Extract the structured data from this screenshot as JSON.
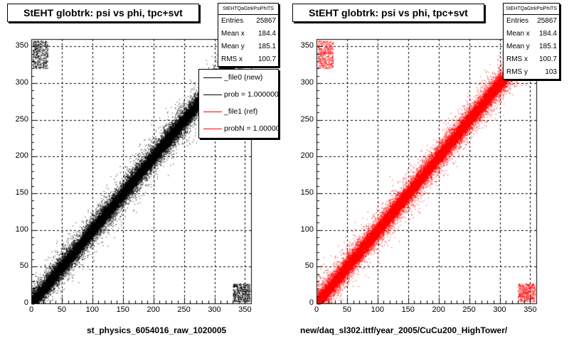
{
  "chart_data": [
    {
      "type": "scatter",
      "title": "StEHT globtrk: psi vs phi, tpc+svt",
      "xlabel": "st_physics_6054016_raw_1020005",
      "ylabel": "",
      "xlim": [
        0,
        360
      ],
      "ylim": [
        0,
        360
      ],
      "xticks": [
        0,
        50,
        100,
        150,
        200,
        250,
        300,
        350
      ],
      "yticks": [
        0,
        50,
        100,
        150,
        200,
        250,
        300,
        350
      ],
      "grid": true,
      "color": "#000000",
      "stats": {
        "name": "StEHTQaGtrkPsiPhiTS",
        "rows": [
          {
            "label": "Entries",
            "value": "25867"
          },
          {
            "label": "Mean x",
            "value": "184.4"
          },
          {
            "label": "Mean y",
            "value": "185.1"
          },
          {
            "label": "RMS x",
            "value": "100.7"
          }
        ]
      },
      "legend": [
        {
          "label": "_file0 (new)",
          "color": "#000000"
        },
        {
          "label": "prob = 1.000000",
          "color": "#000000"
        },
        {
          "label": "_file1 (ref)",
          "color": "#ff0000"
        },
        {
          "label": "probN = 1.000000",
          "color": "#ff0000"
        }
      ],
      "legend_position": "top-right",
      "series": [
        {
          "x": [
            0,
            360
          ],
          "y": [
            0,
            360
          ]
        }
      ]
    },
    {
      "type": "scatter",
      "title": "StEHT globtrk: psi vs phi, tpc+svt",
      "xlabel": "new/daq_sl302.ittf/year_2005/CuCu200_HighTower/",
      "ylabel": "",
      "xlim": [
        0,
        360
      ],
      "ylim": [
        0,
        360
      ],
      "xticks": [
        0,
        50,
        100,
        150,
        200,
        250,
        300,
        350
      ],
      "yticks": [
        0,
        50,
        100,
        150,
        200,
        250,
        300,
        350
      ],
      "grid": true,
      "color": "#ff0000",
      "stats": {
        "name": "StEHTQaGtrkPsiPhiTS",
        "rows": [
          {
            "label": "Entries",
            "value": "25867"
          },
          {
            "label": "Mean x",
            "value": "184.4"
          },
          {
            "label": "Mean y",
            "value": "185.1"
          },
          {
            "label": "RMS x",
            "value": "100.7"
          },
          {
            "label": "RMS y",
            "value": "103"
          }
        ]
      },
      "series": [
        {
          "x": [
            0,
            360
          ],
          "y": [
            0,
            360
          ]
        }
      ]
    }
  ]
}
